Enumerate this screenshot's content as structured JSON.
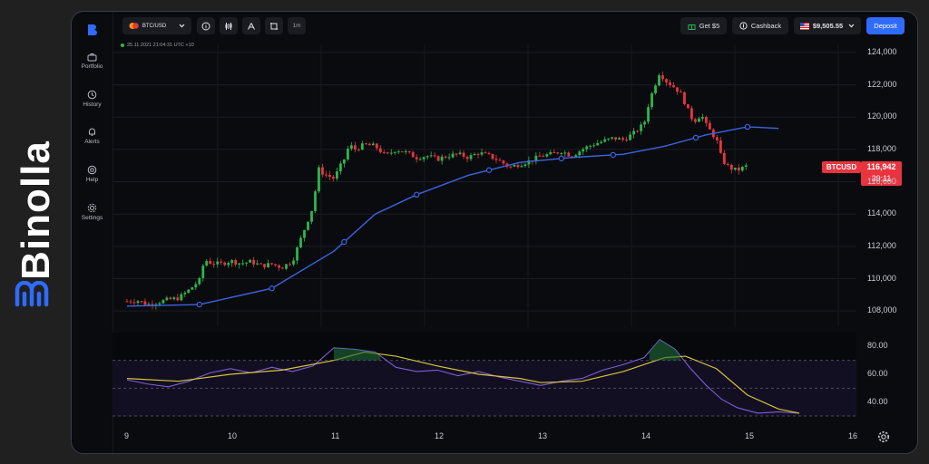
{
  "brand": {
    "name": "Binolla"
  },
  "sidebar": {
    "items": [
      {
        "label": "Portfolio",
        "icon": "briefcase-icon"
      },
      {
        "label": "History",
        "icon": "clock-history-icon"
      },
      {
        "label": "Alerts",
        "icon": "bell-icon"
      },
      {
        "label": "Help",
        "icon": "help-lifebuoy-icon"
      },
      {
        "label": "Settings",
        "icon": "gear-icon"
      }
    ]
  },
  "toolbar": {
    "asset": "BTC/USD",
    "timeframe": "1m",
    "get_bonus": "Get $5",
    "cashback": "Cashback",
    "balance": "$9,505.55",
    "deposit": "Deposit"
  },
  "chart": {
    "timestamp": "25.11.2021  21:04:31  UTC +10",
    "symbol": "BTCUSD",
    "current_price": "116,942",
    "countdown": "39:11",
    "colors": {
      "up": "#2ab84e",
      "down": "#e9343f",
      "ma": "#3d63e0",
      "rsi": "#7b5fd6",
      "rsi_ma": "#d6c23a",
      "background": "#0a0b0f"
    }
  },
  "chart_data": {
    "type": "candlestick",
    "price_axis": {
      "ticks": [
        "124,000",
        "122,000",
        "120,000",
        "118,000",
        "116,000",
        "114,000",
        "112,000",
        "110,000",
        "108,000"
      ],
      "ylim": [
        107000,
        124500
      ]
    },
    "x_axis": {
      "ticks": [
        "9",
        "10",
        "11",
        "12",
        "13",
        "14",
        "15",
        "16"
      ]
    },
    "close_path": [
      [
        9.0,
        108600
      ],
      [
        9.1,
        108650
      ],
      [
        9.2,
        108400
      ],
      [
        9.3,
        108550
      ],
      [
        9.4,
        108700
      ],
      [
        9.5,
        108800
      ],
      [
        9.6,
        109300
      ],
      [
        9.7,
        109900
      ],
      [
        9.75,
        111200
      ],
      [
        9.8,
        111000
      ],
      [
        9.9,
        110900
      ],
      [
        10.0,
        111100
      ],
      [
        10.1,
        110950
      ],
      [
        10.2,
        111050
      ],
      [
        10.3,
        110800
      ],
      [
        10.4,
        110900
      ],
      [
        10.5,
        110700
      ],
      [
        10.6,
        111100
      ],
      [
        10.7,
        112800
      ],
      [
        10.8,
        114500
      ],
      [
        10.85,
        116800
      ],
      [
        10.9,
        116500
      ],
      [
        11.0,
        116200
      ],
      [
        11.1,
        117400
      ],
      [
        11.15,
        118300
      ],
      [
        11.2,
        118000
      ],
      [
        11.3,
        118300
      ],
      [
        11.4,
        118200
      ],
      [
        11.5,
        117600
      ],
      [
        11.6,
        118000
      ],
      [
        11.7,
        117800
      ],
      [
        11.8,
        117500
      ],
      [
        11.9,
        117600
      ],
      [
        12.0,
        117400
      ],
      [
        12.1,
        117600
      ],
      [
        12.2,
        117700
      ],
      [
        12.3,
        117500
      ],
      [
        12.4,
        117800
      ],
      [
        12.5,
        117600
      ],
      [
        12.6,
        117300
      ],
      [
        12.7,
        116900
      ],
      [
        12.8,
        117100
      ],
      [
        12.9,
        117300
      ],
      [
        13.0,
        117600
      ],
      [
        13.1,
        117700
      ],
      [
        13.2,
        117900
      ],
      [
        13.3,
        117600
      ],
      [
        13.4,
        118000
      ],
      [
        13.5,
        118300
      ],
      [
        13.6,
        118500
      ],
      [
        13.7,
        118700
      ],
      [
        13.8,
        118600
      ],
      [
        13.9,
        119000
      ],
      [
        14.0,
        119600
      ],
      [
        14.05,
        121000
      ],
      [
        14.15,
        122800
      ],
      [
        14.2,
        122300
      ],
      [
        14.3,
        121800
      ],
      [
        14.35,
        121500
      ],
      [
        14.4,
        120800
      ],
      [
        14.45,
        120000
      ],
      [
        14.5,
        119800
      ],
      [
        14.55,
        120200
      ],
      [
        14.6,
        119500
      ],
      [
        14.7,
        118600
      ],
      [
        14.75,
        117400
      ],
      [
        14.8,
        117000
      ],
      [
        14.85,
        116800
      ],
      [
        14.9,
        116700
      ],
      [
        15.0,
        117000
      ]
    ],
    "moving_average": [
      [
        9.0,
        108300
      ],
      [
        9.7,
        108400
      ],
      [
        10.4,
        109400
      ],
      [
        11.0,
        111700
      ],
      [
        11.4,
        114000
      ],
      [
        11.8,
        115200
      ],
      [
        12.3,
        116400
      ],
      [
        12.8,
        117200
      ],
      [
        13.3,
        117500
      ],
      [
        13.8,
        117700
      ],
      [
        14.2,
        118200
      ],
      [
        14.6,
        118900
      ],
      [
        15.0,
        119400
      ],
      [
        15.3,
        119300
      ]
    ],
    "rsi_axis": {
      "ticks": [
        "80.00",
        "60.00",
        "40.00"
      ],
      "ylim": [
        30,
        90
      ],
      "levels": [
        70,
        50,
        30
      ]
    },
    "rsi": [
      [
        9.0,
        56
      ],
      [
        9.2,
        53
      ],
      [
        9.4,
        51
      ],
      [
        9.6,
        55
      ],
      [
        9.8,
        61
      ],
      [
        10.0,
        64
      ],
      [
        10.2,
        61
      ],
      [
        10.4,
        65
      ],
      [
        10.6,
        62
      ],
      [
        10.8,
        66
      ],
      [
        11.0,
        79
      ],
      [
        11.2,
        78
      ],
      [
        11.4,
        76
      ],
      [
        11.6,
        65
      ],
      [
        11.8,
        62
      ],
      [
        12.0,
        63
      ],
      [
        12.2,
        59
      ],
      [
        12.4,
        62
      ],
      [
        12.6,
        58
      ],
      [
        12.8,
        55
      ],
      [
        13.0,
        52
      ],
      [
        13.2,
        55
      ],
      [
        13.4,
        57
      ],
      [
        13.6,
        63
      ],
      [
        13.8,
        67
      ],
      [
        14.0,
        72
      ],
      [
        14.15,
        85
      ],
      [
        14.3,
        78
      ],
      [
        14.45,
        64
      ],
      [
        14.6,
        52
      ],
      [
        14.75,
        42
      ],
      [
        14.9,
        36
      ],
      [
        15.1,
        32
      ],
      [
        15.3,
        33
      ],
      [
        15.5,
        32
      ]
    ],
    "rsi_ma": [
      [
        9.0,
        57
      ],
      [
        9.5,
        55
      ],
      [
        10.0,
        60
      ],
      [
        10.5,
        63
      ],
      [
        11.0,
        70
      ],
      [
        11.3,
        76
      ],
      [
        11.6,
        73
      ],
      [
        12.0,
        66
      ],
      [
        12.4,
        60
      ],
      [
        12.8,
        57
      ],
      [
        13.0,
        54
      ],
      [
        13.4,
        55
      ],
      [
        13.8,
        62
      ],
      [
        14.2,
        72
      ],
      [
        14.4,
        73
      ],
      [
        14.7,
        64
      ],
      [
        15.0,
        45
      ],
      [
        15.3,
        35
      ],
      [
        15.5,
        32
      ]
    ]
  }
}
